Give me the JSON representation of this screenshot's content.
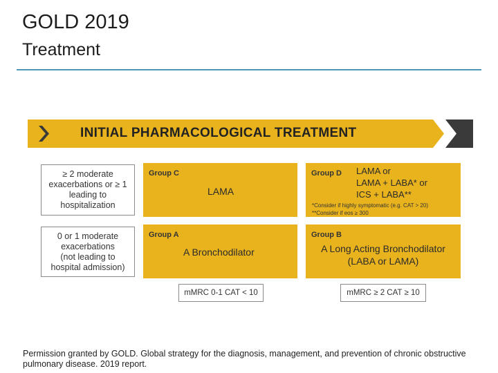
{
  "header": {
    "title": "GOLD 2019",
    "subtitle": "Treatment"
  },
  "banner": {
    "label": "INITIAL PHARMACOLOGICAL TREATMENT",
    "color": "#e9b31e",
    "dark_color": "#3a3a3a"
  },
  "rows": {
    "top_criteria": [
      "≥ 2 moderate",
      "exacerbations or ≥ 1",
      "leading to",
      "hospitalization"
    ],
    "bottom_criteria": [
      "0 or 1 moderate",
      "exacerbations",
      "(not leading to",
      "hospital admission)"
    ]
  },
  "groups": {
    "c": {
      "name": "Group C",
      "treatment": "LAMA"
    },
    "d": {
      "name": "Group D",
      "treatment_lines": [
        "LAMA  or",
        "LAMA + LABA* or",
        "ICS + LABA**"
      ],
      "notes": [
        "*Consider if highly symptomatic (e.g. CAT > 20)",
        "**Consider if eos ≥ 300"
      ]
    },
    "a": {
      "name": "Group A",
      "treatment": "A Bronchodilator"
    },
    "b": {
      "name": "Group B",
      "treatment_lines": [
        "A  Long Acting Bronchodilator",
        "(LABA or LAMA)"
      ]
    }
  },
  "columns": {
    "left_label": "mMRC 0-1 CAT < 10",
    "right_label": "mMRC ≥ 2 CAT ≥ 10"
  },
  "footer": {
    "text": "Permission granted by GOLD. Global strategy for the diagnosis, management, and prevention of chronic obstructive pulmonary disease. 2019 report."
  },
  "colors": {
    "group_fill": "#e9b31e",
    "rule": "#4a98b3"
  }
}
